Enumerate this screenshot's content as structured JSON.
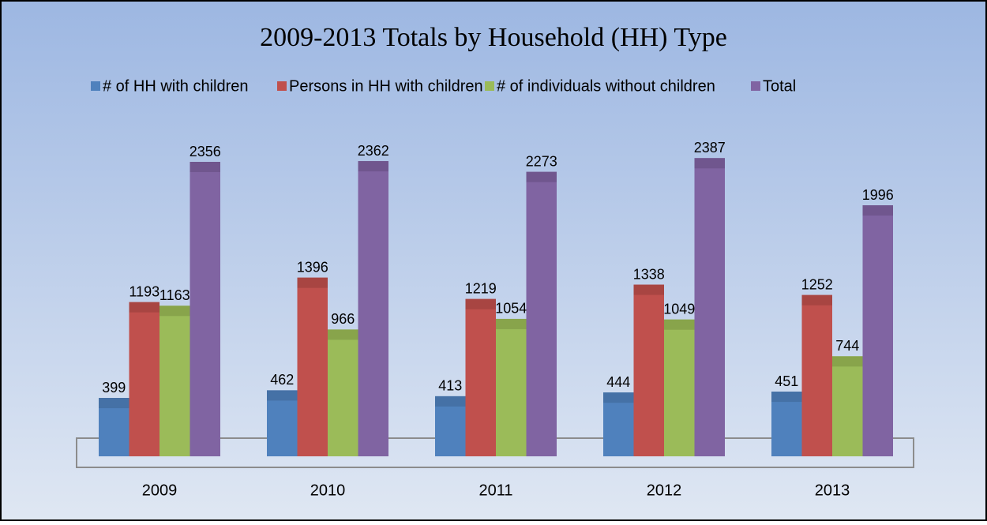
{
  "chart_data": {
    "type": "bar",
    "title": "2009-2013 Totals by Household (HH) Type",
    "categories": [
      "2009",
      "2010",
      "2011",
      "2012",
      "2013"
    ],
    "series": [
      {
        "name": "# of HH with children",
        "color": "#4f81bd",
        "values": [
          399,
          462,
          413,
          444,
          451
        ]
      },
      {
        "name": "Persons in HH with children",
        "color": "#c0504d",
        "values": [
          1193,
          1396,
          1219,
          1338,
          1252
        ]
      },
      {
        "name": "# of individuals without children",
        "color": "#9bbb59",
        "values": [
          1163,
          966,
          1054,
          1049,
          744
        ]
      },
      {
        "name": "Total",
        "color": "#8064a2",
        "values": [
          2356,
          2362,
          2273,
          2387,
          1996
        ]
      }
    ],
    "ylim": [
      0,
      2500
    ]
  }
}
